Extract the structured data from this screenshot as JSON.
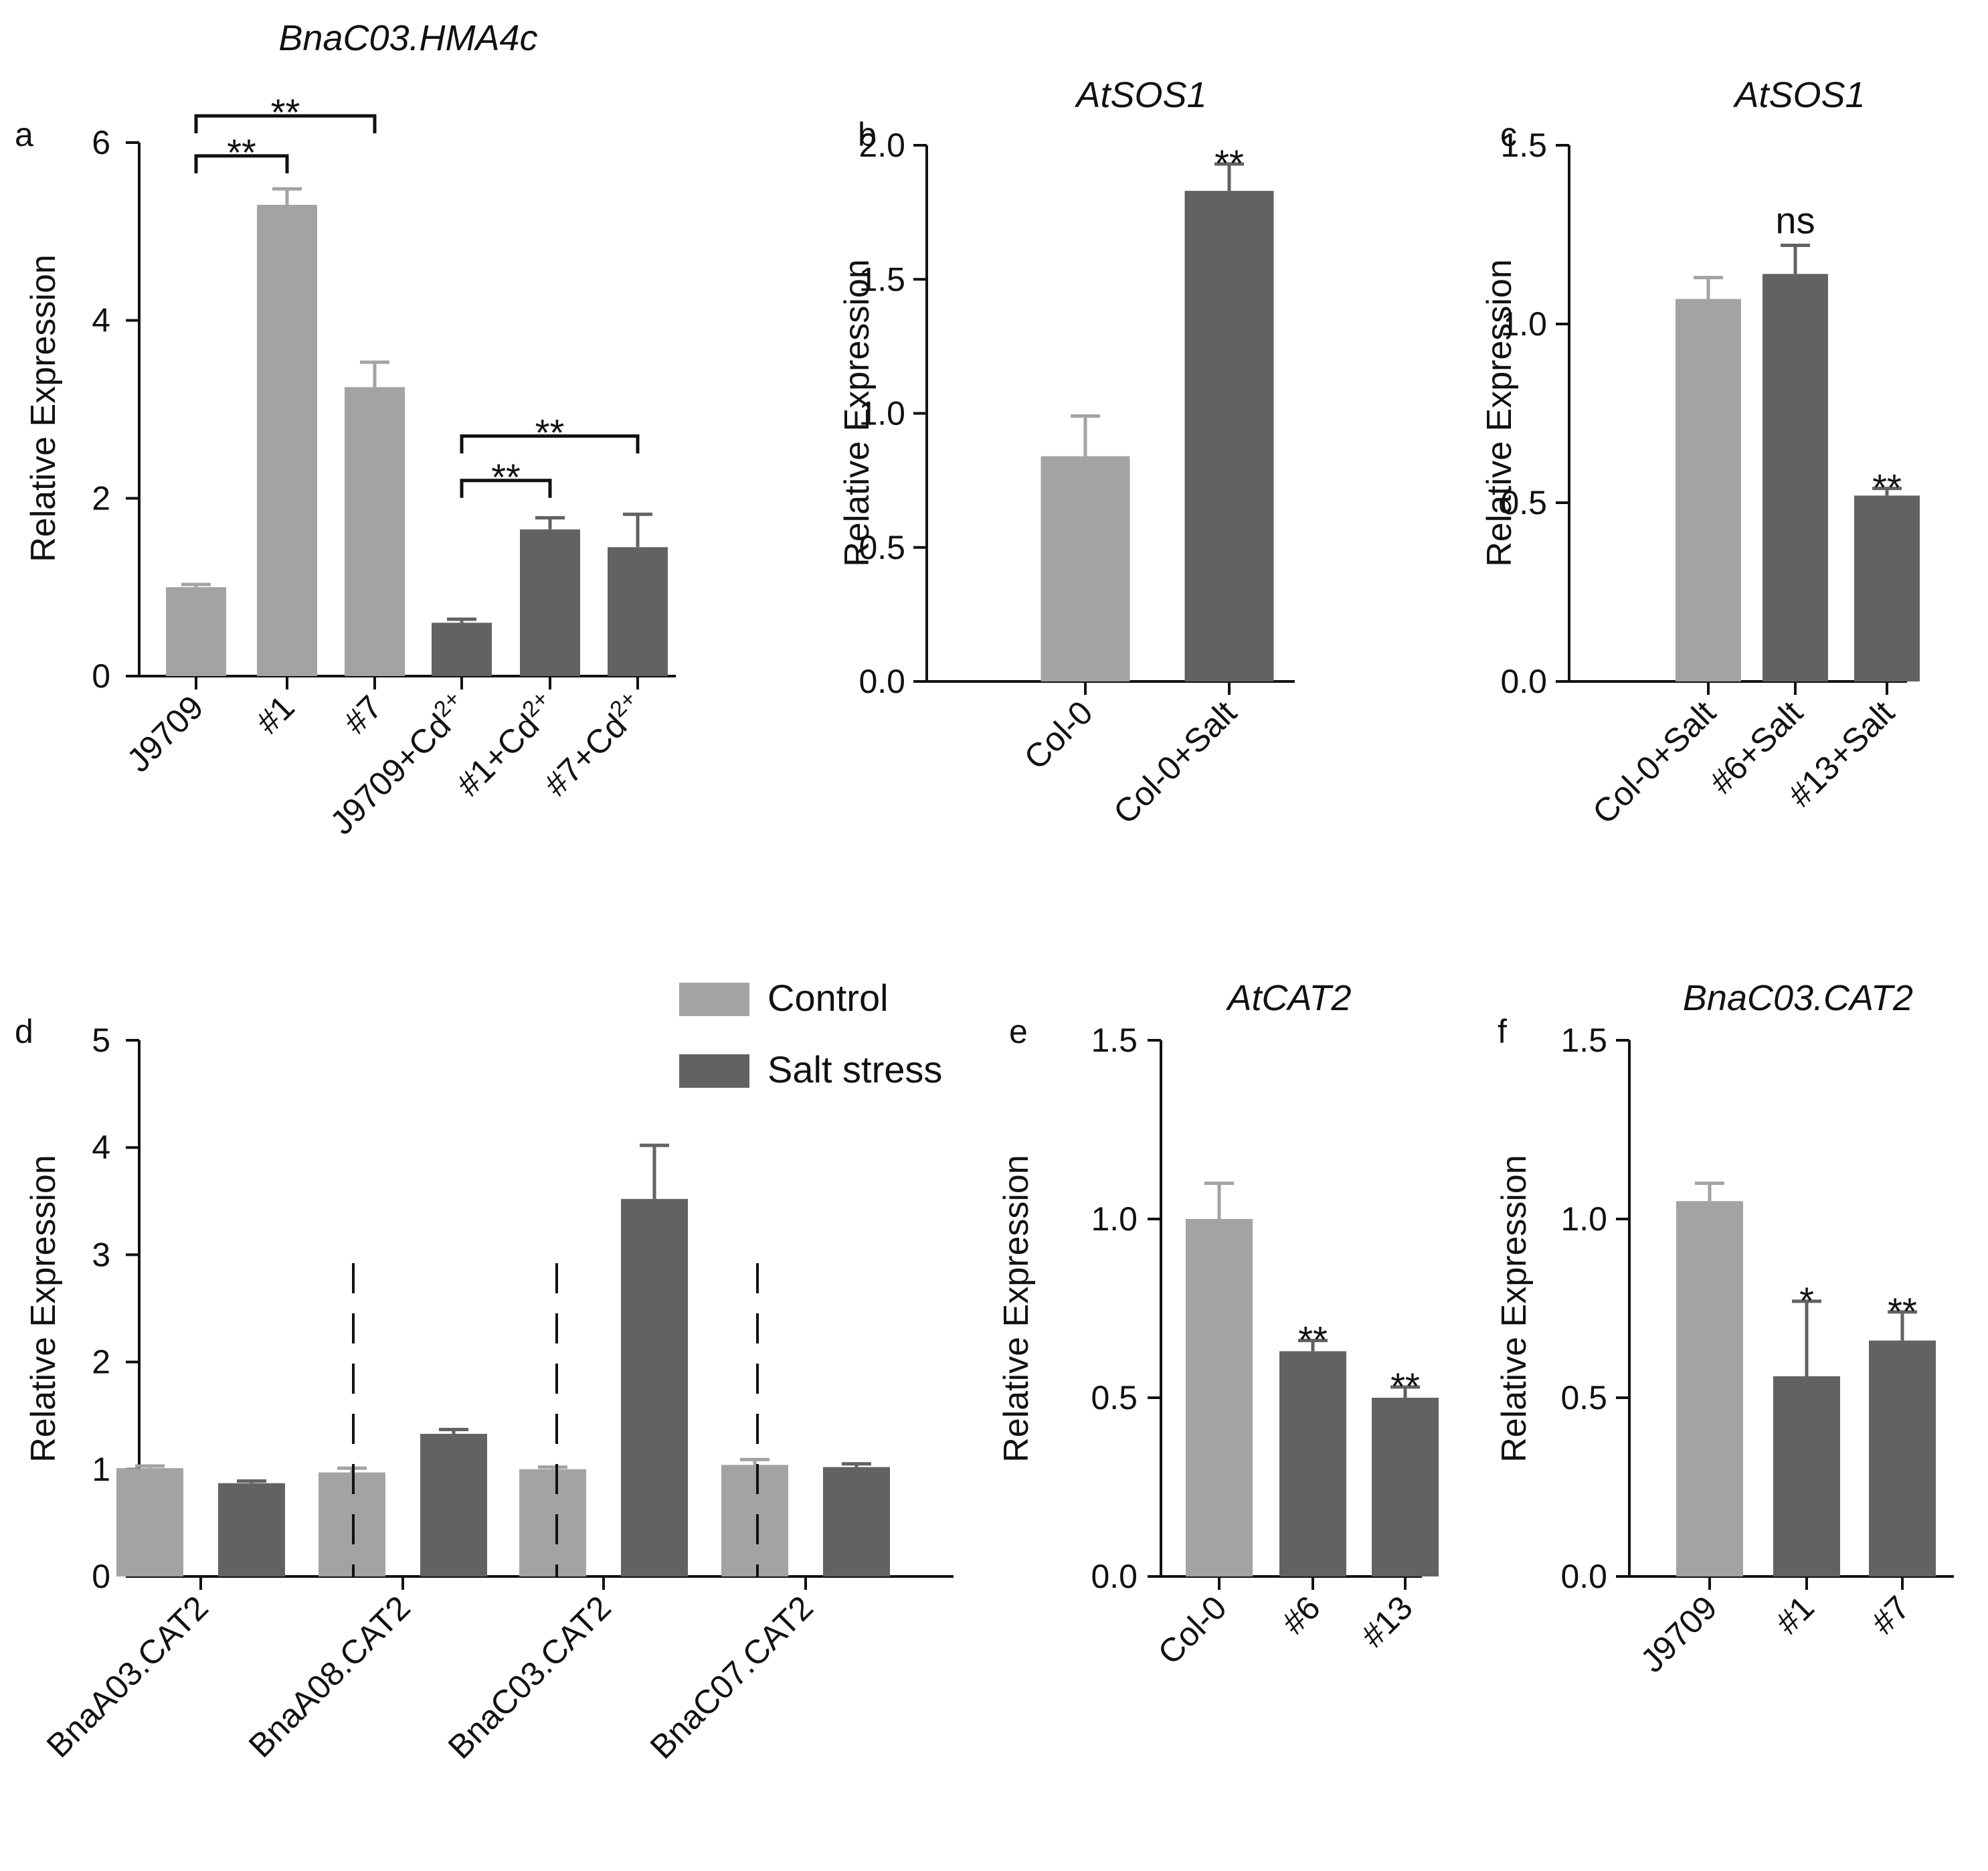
{
  "colors": {
    "control": "#a3a3a6",
    "treatment": "#626262",
    "axis": "#111111"
  },
  "chart_data": [
    {
      "id": "a",
      "type": "bar",
      "title": "BnaC03.HMA4c",
      "panel": "a",
      "ylabel": "Relative Expression",
      "ylim": [
        0,
        6
      ],
      "yticks": [
        "0",
        "2",
        "4",
        "6"
      ],
      "categories": [
        {
          "base": "J9709",
          "sup": ""
        },
        {
          "base": "#1",
          "sup": ""
        },
        {
          "base": "#7",
          "sup": ""
        },
        {
          "base": "J9709+Cd",
          "sup": "2+"
        },
        {
          "base": "#1+Cd",
          "sup": "2+"
        },
        {
          "base": "#7+Cd",
          "sup": "2+"
        }
      ],
      "values": [
        1.0,
        5.3,
        3.25,
        0.6,
        1.65,
        1.45
      ],
      "errors": [
        0.03,
        0.18,
        0.28,
        0.04,
        0.13,
        0.37
      ],
      "groups": [
        "control",
        "control",
        "control",
        "treatment",
        "treatment",
        "treatment"
      ],
      "brackets": [
        {
          "from": 0,
          "to": 2,
          "level": 6.3,
          "label": "**"
        },
        {
          "from": 0,
          "to": 1,
          "level": 5.85,
          "label": "**"
        },
        {
          "from": 3,
          "to": 5,
          "level": 2.7,
          "label": "**"
        },
        {
          "from": 3,
          "to": 4,
          "level": 2.2,
          "label": "**"
        }
      ],
      "annotations": []
    },
    {
      "id": "b",
      "type": "bar",
      "title": "AtSOS1",
      "panel": "b",
      "ylabel": "Relative Expression",
      "ylim": [
        0,
        2.0
      ],
      "yticks": [
        "0.0",
        "0.5",
        "1.0",
        "1.5",
        "2.0"
      ],
      "categories": [
        {
          "base": "Col-0",
          "sup": ""
        },
        {
          "base": "Col-0+Salt",
          "sup": ""
        }
      ],
      "values": [
        0.84,
        1.83
      ],
      "errors": [
        0.15,
        0.1
      ],
      "groups": [
        "control",
        "treatment"
      ],
      "brackets": [],
      "annotations": [
        {
          "index": 1,
          "label": "**"
        }
      ]
    },
    {
      "id": "c",
      "type": "bar",
      "title": "AtSOS1",
      "panel": "c",
      "ylabel": "Relative Expression",
      "ylim": [
        0,
        1.5
      ],
      "yticks": [
        "0.0",
        "0.5",
        "1.0",
        "1.5"
      ],
      "categories": [
        {
          "base": "Col-0+Salt",
          "sup": ""
        },
        {
          "base": "#6+Salt",
          "sup": ""
        },
        {
          "base": "#13+Salt",
          "sup": ""
        }
      ],
      "values": [
        1.07,
        1.14,
        0.52
      ],
      "errors": [
        0.06,
        0.08,
        0.02
      ],
      "groups": [
        "control",
        "treatment",
        "treatment"
      ],
      "brackets": [],
      "annotations": [
        {
          "index": 1,
          "label": "ns"
        },
        {
          "index": 2,
          "label": "**"
        }
      ]
    },
    {
      "id": "d",
      "type": "bar",
      "title": "",
      "panel": "d",
      "ylabel": "Relative Expression",
      "ylim": [
        0,
        5
      ],
      "yticks": [
        "0",
        "1",
        "2",
        "3",
        "4",
        "5"
      ],
      "categories": [
        {
          "base": "BnaA03.CAT2",
          "sup": ""
        },
        {
          "base": "BnaA08.CAT2",
          "sup": ""
        },
        {
          "base": "BnaC03.CAT2",
          "sup": ""
        },
        {
          "base": "BnaC07.CAT2",
          "sup": ""
        }
      ],
      "series": [
        {
          "name": "Control",
          "group": "control",
          "values": [
            1.01,
            0.97,
            1.0,
            1.04
          ],
          "errors": [
            0.02,
            0.04,
            0.02,
            0.05
          ]
        },
        {
          "name": "Salt stress",
          "group": "treatment",
          "values": [
            0.87,
            1.33,
            3.52,
            1.02
          ],
          "errors": [
            0.02,
            0.04,
            0.5,
            0.03
          ]
        }
      ],
      "legend": {
        "position": "top-right",
        "entries": [
          "Control",
          "Salt stress"
        ]
      }
    },
    {
      "id": "e",
      "type": "bar",
      "title": "AtCAT2",
      "panel": "e",
      "ylabel": "Relative Expression",
      "ylim": [
        0,
        1.5
      ],
      "yticks": [
        "0.0",
        "0.5",
        "1.0",
        "1.5"
      ],
      "categories": [
        {
          "base": "Col-0",
          "sup": ""
        },
        {
          "base": "#6",
          "sup": ""
        },
        {
          "base": "#13",
          "sup": ""
        }
      ],
      "values": [
        1.0,
        0.63,
        0.5
      ],
      "errors": [
        0.1,
        0.03,
        0.03
      ],
      "groups": [
        "control",
        "treatment",
        "treatment"
      ],
      "brackets": [],
      "annotations": [
        {
          "index": 1,
          "label": "**"
        },
        {
          "index": 2,
          "label": "**"
        }
      ]
    },
    {
      "id": "f",
      "type": "bar",
      "title": "BnaC03.CAT2",
      "panel": "f",
      "ylabel": "Relative Expression",
      "ylim": [
        0,
        1.5
      ],
      "yticks": [
        "0.0",
        "0.5",
        "1.0",
        "1.5"
      ],
      "categories": [
        {
          "base": "J9709",
          "sup": ""
        },
        {
          "base": "#1",
          "sup": ""
        },
        {
          "base": "#7",
          "sup": ""
        }
      ],
      "values": [
        1.05,
        0.56,
        0.66
      ],
      "errors": [
        0.05,
        0.21,
        0.08
      ],
      "groups": [
        "control",
        "treatment",
        "treatment"
      ],
      "brackets": [],
      "annotations": [
        {
          "index": 1,
          "label": "*"
        },
        {
          "index": 2,
          "label": "**"
        }
      ]
    }
  ]
}
